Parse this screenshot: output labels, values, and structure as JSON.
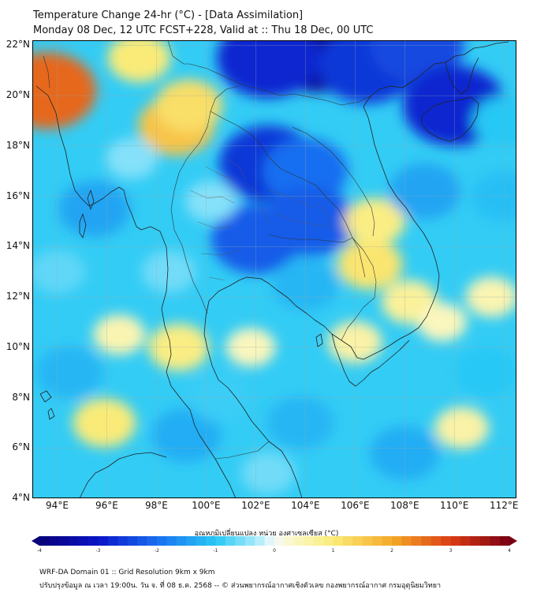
{
  "header": {
    "title_line1": "Temperature Change 24-hr (°C) - [Data Assimilation]",
    "title_line2": "Monday 08 Dec, 12 UTC FCST+228, Valid at :: Thu 18 Dec, 00 UTC"
  },
  "map": {
    "lat_labels": [
      "22°N",
      "20°N",
      "18°N",
      "16°N",
      "14°N",
      "12°N",
      "10°N",
      "8°N",
      "6°N",
      "4°N"
    ],
    "lon_labels": [
      "94°E",
      "96°E",
      "98°E",
      "100°E",
      "102°E",
      "104°E",
      "106°E",
      "108°E",
      "110°E",
      "112°E"
    ],
    "extent": {
      "lon_min": 93.0,
      "lon_max": 112.5,
      "lat_min": 4.0,
      "lat_max": 22.2
    },
    "anomalies": [
      {
        "lon": 104.5,
        "lat": 22.0,
        "value": -3.6
      },
      {
        "lon": 102.5,
        "lat": 21.5,
        "value": -2.8
      },
      {
        "lon": 106.5,
        "lat": 21.2,
        "value": -2.6
      },
      {
        "lon": 108.5,
        "lat": 22.0,
        "value": -2.4
      },
      {
        "lon": 110.0,
        "lat": 19.6,
        "value": -2.8
      },
      {
        "lon": 102.5,
        "lat": 17.3,
        "value": -2.6
      },
      {
        "lon": 104.0,
        "lat": 17.0,
        "value": -2.0
      },
      {
        "lon": 102.0,
        "lat": 14.3,
        "value": -2.2
      },
      {
        "lon": 104.2,
        "lat": 15.0,
        "value": -2.2
      },
      {
        "lon": 93.6,
        "lat": 20.2,
        "value": 2.6
      },
      {
        "lon": 98.8,
        "lat": 18.8,
        "value": 1.6
      },
      {
        "lon": 99.3,
        "lat": 19.6,
        "value": 1.2
      },
      {
        "lon": 97.3,
        "lat": 21.5,
        "value": 1.0
      },
      {
        "lon": 106.6,
        "lat": 13.3,
        "value": 1.1
      },
      {
        "lon": 106.8,
        "lat": 15.0,
        "value": 0.9
      },
      {
        "lon": 108.2,
        "lat": 11.8,
        "value": 0.7
      },
      {
        "lon": 95.9,
        "lat": 7.0,
        "value": 1.0
      },
      {
        "lon": 98.9,
        "lat": 10.0,
        "value": 0.9
      },
      {
        "lon": 96.5,
        "lat": 10.5,
        "value": 0.5
      },
      {
        "lon": 101.8,
        "lat": 10.0,
        "value": 0.4
      },
      {
        "lon": 106.0,
        "lat": 10.2,
        "value": 0.6
      },
      {
        "lon": 110.3,
        "lat": 6.8,
        "value": 0.6
      },
      {
        "lon": 109.5,
        "lat": 11.0,
        "value": 0.4
      },
      {
        "lon": 111.5,
        "lat": 12.0,
        "value": 0.5
      },
      {
        "lon": 95.5,
        "lat": 15.5,
        "value": -1.4
      },
      {
        "lon": 94.5,
        "lat": 9.0,
        "value": -1.2
      },
      {
        "lon": 99.2,
        "lat": 6.5,
        "value": -1.3
      },
      {
        "lon": 103.8,
        "lat": 7.0,
        "value": -1.2
      },
      {
        "lon": 108.0,
        "lat": 5.8,
        "value": -1.3
      },
      {
        "lon": 111.3,
        "lat": 9.0,
        "value": -1.0
      },
      {
        "lon": 112.0,
        "lat": 16.0,
        "value": -1.1
      },
      {
        "lon": 108.8,
        "lat": 16.2,
        "value": -1.4
      },
      {
        "lon": 104.0,
        "lat": 12.5,
        "value": -1.2
      },
      {
        "lon": 100.2,
        "lat": 15.8,
        "value": -0.5
      },
      {
        "lon": 98.5,
        "lat": 13.0,
        "value": -0.6
      },
      {
        "lon": 100.5,
        "lat": 8.0,
        "value": -0.9
      },
      {
        "lon": 102.5,
        "lat": 5.0,
        "value": -0.6
      },
      {
        "lon": 97.0,
        "lat": 17.5,
        "value": -0.5
      },
      {
        "lon": 94.0,
        "lat": 13.0,
        "value": -0.7
      },
      {
        "lon": 112.0,
        "lat": 19.0,
        "value": -1.0
      }
    ]
  },
  "colorbar": {
    "title": "อุณหภูมิเปลี่ยนแปลง หน่วย องศาเซลเซียส (°C)",
    "ticks": [
      "-4",
      "-3",
      "-2",
      "-1",
      "0",
      "1",
      "2",
      "3",
      "4"
    ],
    "range": [
      -4,
      4
    ]
  },
  "footer": {
    "line1": "WRF-DA Domain 01 :: Grid Resolution 9km x 9km",
    "line2": "ปรับปรุงข้อมูล ณ เวลา 19:00น. วัน จ. ที่ 08 ธ.ค. 2568 -- © ส่วนพยากรณ์อากาศเชิงตัวเลข กองพยากรณ์อากาศ กรมอุตุนิยมวิทยา"
  }
}
